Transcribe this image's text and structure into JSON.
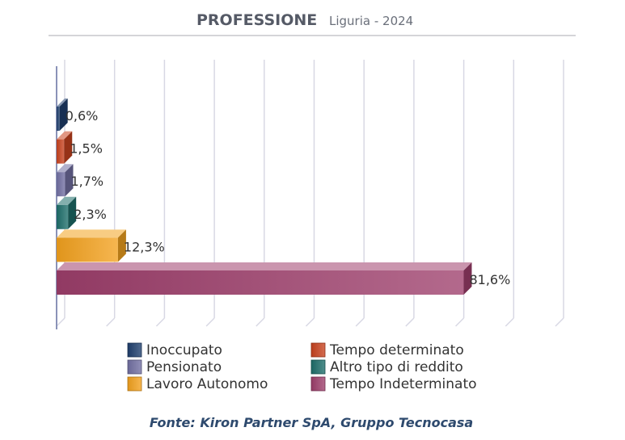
{
  "header": {
    "title": "PROFESSIONE",
    "subtitle": "Liguria - 2024"
  },
  "source": "Fonte: Kiron Partner SpA, Gruppo Tecnocasa",
  "chart_data": {
    "type": "bar",
    "orientation": "horizontal",
    "style": "3d",
    "title": "PROFESSIONE",
    "subtitle": "Liguria - 2024",
    "categories": [
      "Inoccupato",
      "Tempo determinato",
      "Pensionato",
      "Altro tipo di reddito",
      "Lavoro Autonomo",
      "Tempo Indeterminato"
    ],
    "values": [
      0.6,
      1.5,
      1.7,
      2.3,
      12.3,
      81.6
    ],
    "labels": [
      "0,6%",
      "1,5%",
      "1,7%",
      "2,3%",
      "12,3%",
      "81,6%"
    ],
    "colors": [
      "#1f3f6e",
      "#c8421e",
      "#7270a3",
      "#1d6e6a",
      "#f3a21e",
      "#9e3f6c"
    ],
    "xlim": [
      0,
      100
    ],
    "grid": true,
    "legend_position": "bottom",
    "legend": [
      {
        "label": "Inoccupato",
        "color": "#1f3f6e"
      },
      {
        "label": "Tempo determinato",
        "color": "#c8421e"
      },
      {
        "label": "Pensionato",
        "color": "#7270a3"
      },
      {
        "label": "Altro tipo di reddito",
        "color": "#1d6e6a"
      },
      {
        "label": "Lavoro Autonomo",
        "color": "#f3a21e"
      },
      {
        "label": "Tempo Indeterminato",
        "color": "#9e3f6c"
      }
    ]
  }
}
